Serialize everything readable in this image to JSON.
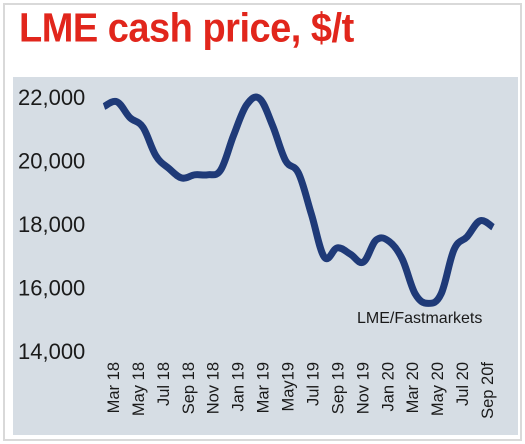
{
  "colors": {
    "title": "#e1261c",
    "line": "#1f3a78",
    "plot_background": "#d6dde4"
  },
  "chart_data": {
    "type": "line",
    "title": "LME cash price, $/t",
    "xlabel": "",
    "ylabel": "",
    "ylim": [
      14000,
      22500
    ],
    "yticks": [
      "22,000",
      "20,000",
      "18,000",
      "16,000",
      "14,000"
    ],
    "ytick_values": [
      22000,
      20000,
      18000,
      16000,
      14000
    ],
    "xticks": [
      "Mar 18",
      "May 18",
      "Jul 18",
      "Sep 18",
      "Nov 18",
      "Jan 19",
      "Mar 19",
      "May19",
      "Jul 19",
      "Sep 19",
      "Nov 19",
      "Jan 20",
      "Mar 20",
      "May 20",
      "Jul 20",
      "Sep 20f"
    ],
    "grid": false,
    "series": [
      {
        "values": [
          21700,
          21850,
          21350,
          21050,
          20150,
          19750,
          19450,
          19550,
          19550,
          19700,
          20800,
          21750,
          21950,
          21100,
          20000,
          19600,
          18300,
          16950,
          17250,
          17050,
          16800,
          17500,
          17450,
          16900,
          15800,
          15500,
          15800,
          17200,
          17600,
          18100,
          17900
        ]
      }
    ],
    "annotation": "LME/Fastmarkets"
  }
}
